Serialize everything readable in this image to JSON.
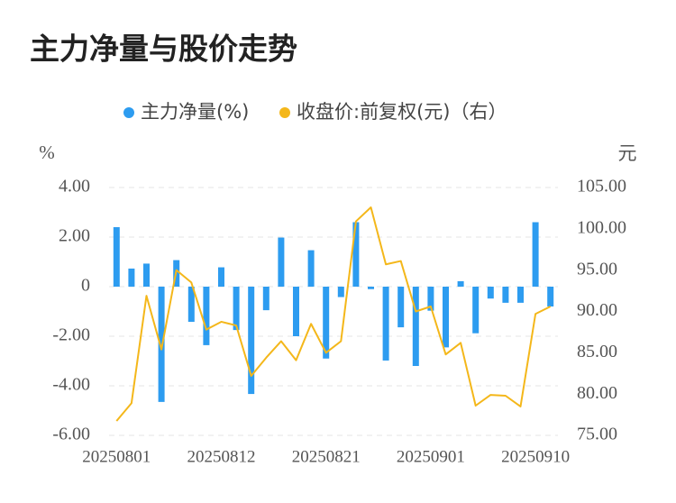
{
  "chart_data": {
    "type": "bar",
    "title": "主力净量与股价走势",
    "y_label": "%",
    "y2_label": "元",
    "legend": "top",
    "grid": true,
    "categories": [
      "20250801",
      null,
      null,
      null,
      null,
      null,
      null,
      "20250812",
      null,
      null,
      null,
      null,
      null,
      null,
      "20250821",
      null,
      null,
      null,
      null,
      null,
      null,
      "20250901",
      null,
      null,
      null,
      null,
      null,
      null,
      "20250910",
      null
    ],
    "series": [
      {
        "name": "主力净量(%)",
        "color": "#2d9cf0",
        "type": "bar",
        "values": [
          2.4,
          0.73,
          0.93,
          -4.65,
          1.07,
          -1.42,
          -2.36,
          0.78,
          -1.75,
          -4.33,
          -0.95,
          1.98,
          -2.0,
          1.47,
          -2.9,
          -0.42,
          2.6,
          -0.1,
          -2.98,
          -1.64,
          -3.2,
          -0.97,
          -2.45,
          0.22,
          -1.88,
          -0.48,
          -0.65,
          -0.65,
          2.6,
          -0.8
        ]
      },
      {
        "name": "收盘价:前复权(元)（右）",
        "color": "#f4b71a",
        "type": "line",
        "axis": "y2",
        "values": [
          76.75,
          78.9,
          91.9,
          85.4,
          95.0,
          93.5,
          87.8,
          88.75,
          88.3,
          82.2,
          84.4,
          86.4,
          84.1,
          88.5,
          85.0,
          86.4,
          100.9,
          102.6,
          95.7,
          96.1,
          90.0,
          90.6,
          84.8,
          86.2,
          78.6,
          79.9,
          79.8,
          78.5,
          89.7,
          90.6
        ]
      }
    ],
    "ylim": [
      -6,
      4
    ],
    "yticks": [
      {
        "value": 4,
        "label": "4.00"
      },
      {
        "value": 2,
        "label": "2.00"
      },
      0,
      {
        "value": -2,
        "label": "-2.00"
      },
      {
        "value": -4,
        "label": "-4.00"
      },
      {
        "value": -6,
        "label": "-6.00"
      }
    ],
    "y2lim": [
      75,
      105
    ],
    "y2ticks": [
      {
        "value": 105,
        "label": "105.00"
      },
      {
        "value": 100,
        "label": "100.00"
      },
      {
        "value": 95,
        "label": "95.00"
      },
      {
        "value": 90,
        "label": "90.00"
      },
      {
        "value": 85,
        "label": "85.00"
      },
      {
        "value": 80,
        "label": "80.00"
      },
      {
        "value": 75,
        "label": "75.00"
      }
    ]
  }
}
